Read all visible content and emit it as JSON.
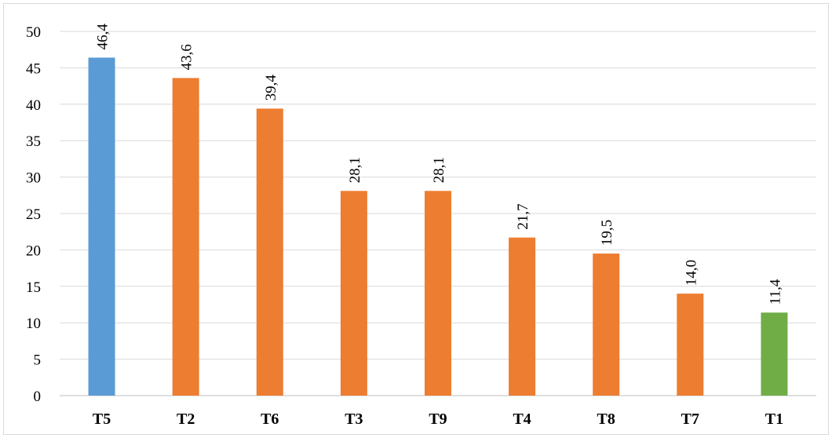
{
  "chart_data": {
    "type": "bar",
    "title": "",
    "xlabel": "",
    "ylabel": "",
    "categories": [
      "T5",
      "T2",
      "T6",
      "T3",
      "T9",
      "T4",
      "T8",
      "T7",
      "T1"
    ],
    "values": [
      46.4,
      43.6,
      39.4,
      28.1,
      28.1,
      21.7,
      19.5,
      14.0,
      11.4
    ],
    "data_labels": [
      "46,4",
      "43,6",
      "39,4",
      "28,1",
      "28,1",
      "21,7",
      "19,5",
      "14,0",
      "11,4"
    ],
    "bar_colors": [
      "#5b9bd5",
      "#ed7d31",
      "#ed7d31",
      "#ed7d31",
      "#ed7d31",
      "#ed7d31",
      "#ed7d31",
      "#ed7d31",
      "#70ad47"
    ],
    "yticks": [
      "0",
      "5",
      "10",
      "15",
      "20",
      "25",
      "30",
      "35",
      "40",
      "45",
      "50"
    ],
    "ylim": [
      0,
      50
    ],
    "grid": true,
    "legend": "none",
    "data_label_rotation": "vertical"
  }
}
